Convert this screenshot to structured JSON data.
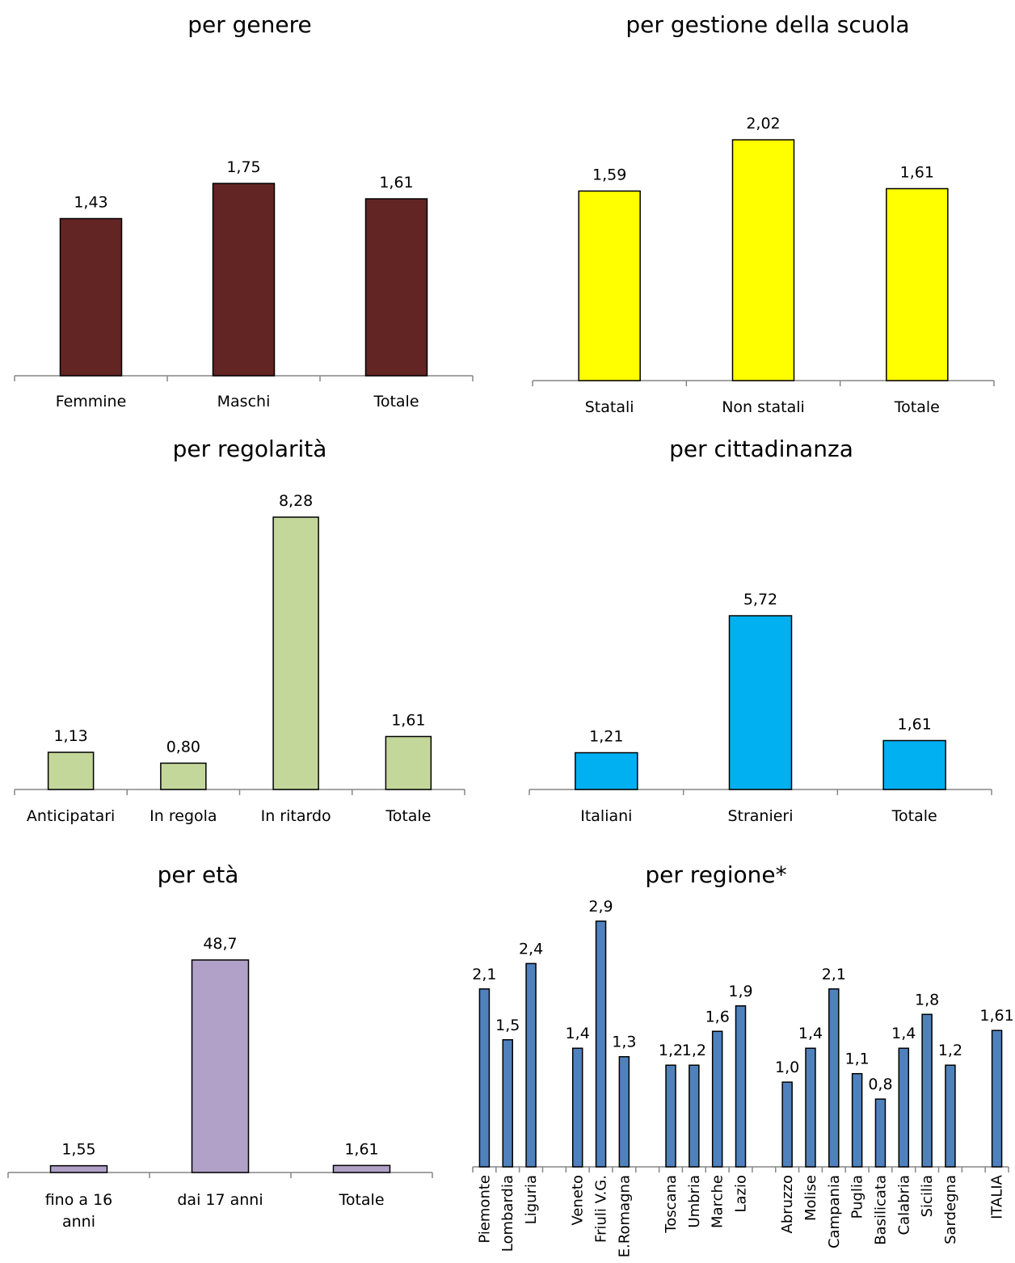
{
  "chart_data": [
    {
      "type": "bar",
      "title": "per genere",
      "categories": [
        "Femmine",
        "Maschi",
        "Totale"
      ],
      "values": [
        1.43,
        1.75,
        1.61
      ],
      "value_labels": [
        "1,43",
        "1,75",
        "1,61"
      ],
      "color": "#632523"
    },
    {
      "type": "bar",
      "title": "per gestione della scuola",
      "categories": [
        "Statali",
        "Non statali",
        "Totale"
      ],
      "values": [
        1.59,
        2.02,
        1.61
      ],
      "value_labels": [
        "1,59",
        "2,02",
        "1,61"
      ],
      "color": "#ffff00"
    },
    {
      "type": "bar",
      "title": "per regolarità",
      "categories": [
        "Anticipatari",
        "In regola",
        "In ritardo",
        "Totale"
      ],
      "values": [
        1.13,
        0.8,
        8.28,
        1.61
      ],
      "value_labels": [
        "1,13",
        "0,80",
        "8,28",
        "1,61"
      ],
      "color": "#c4d79b"
    },
    {
      "type": "bar",
      "title": "per cittadinanza",
      "categories": [
        "Italiani",
        "Stranieri",
        "Totale"
      ],
      "values": [
        1.21,
        5.72,
        1.61
      ],
      "value_labels": [
        "1,21",
        "5,72",
        "1,61"
      ],
      "color": "#00b0f0"
    },
    {
      "type": "bar",
      "title": "per età",
      "categories": [
        "fino a 16 anni",
        "dai 17 anni",
        "Totale"
      ],
      "values": [
        1.55,
        48.7,
        1.61
      ],
      "value_labels": [
        "1,55",
        "48,7",
        "1,61"
      ],
      "color": "#b1a0c7"
    },
    {
      "type": "bar",
      "title": "per regione*",
      "categories": [
        "Piemonte",
        "Lombardia",
        "Liguria",
        "",
        "Veneto",
        "Friuli V.G.",
        "E.Romagna",
        "",
        "Toscana",
        "Umbria",
        "Marche",
        "Lazio",
        "",
        "Abruzzo",
        "Molise",
        "Campania",
        "Puglia",
        "Basilicata",
        "Calabria",
        "Sicilia",
        "Sardegna",
        "",
        "ITALIA"
      ],
      "values": [
        2.1,
        1.5,
        2.4,
        null,
        1.4,
        2.9,
        1.3,
        null,
        1.2,
        1.2,
        1.6,
        1.9,
        null,
        1.0,
        1.4,
        2.1,
        1.1,
        0.8,
        1.4,
        1.8,
        1.2,
        null,
        1.61
      ],
      "value_labels": [
        "2,1",
        "1,5",
        "2,4",
        "",
        "1,4",
        "2,9",
        "1,3",
        "",
        "1,2",
        "1,2",
        "1,6",
        "1,9",
        "",
        "1,0",
        "1,4",
        "2,1",
        "1,1",
        "0,8",
        "1,4",
        "1,8",
        "1,2",
        "",
        "1,61"
      ],
      "color": "#4f81bd"
    }
  ]
}
